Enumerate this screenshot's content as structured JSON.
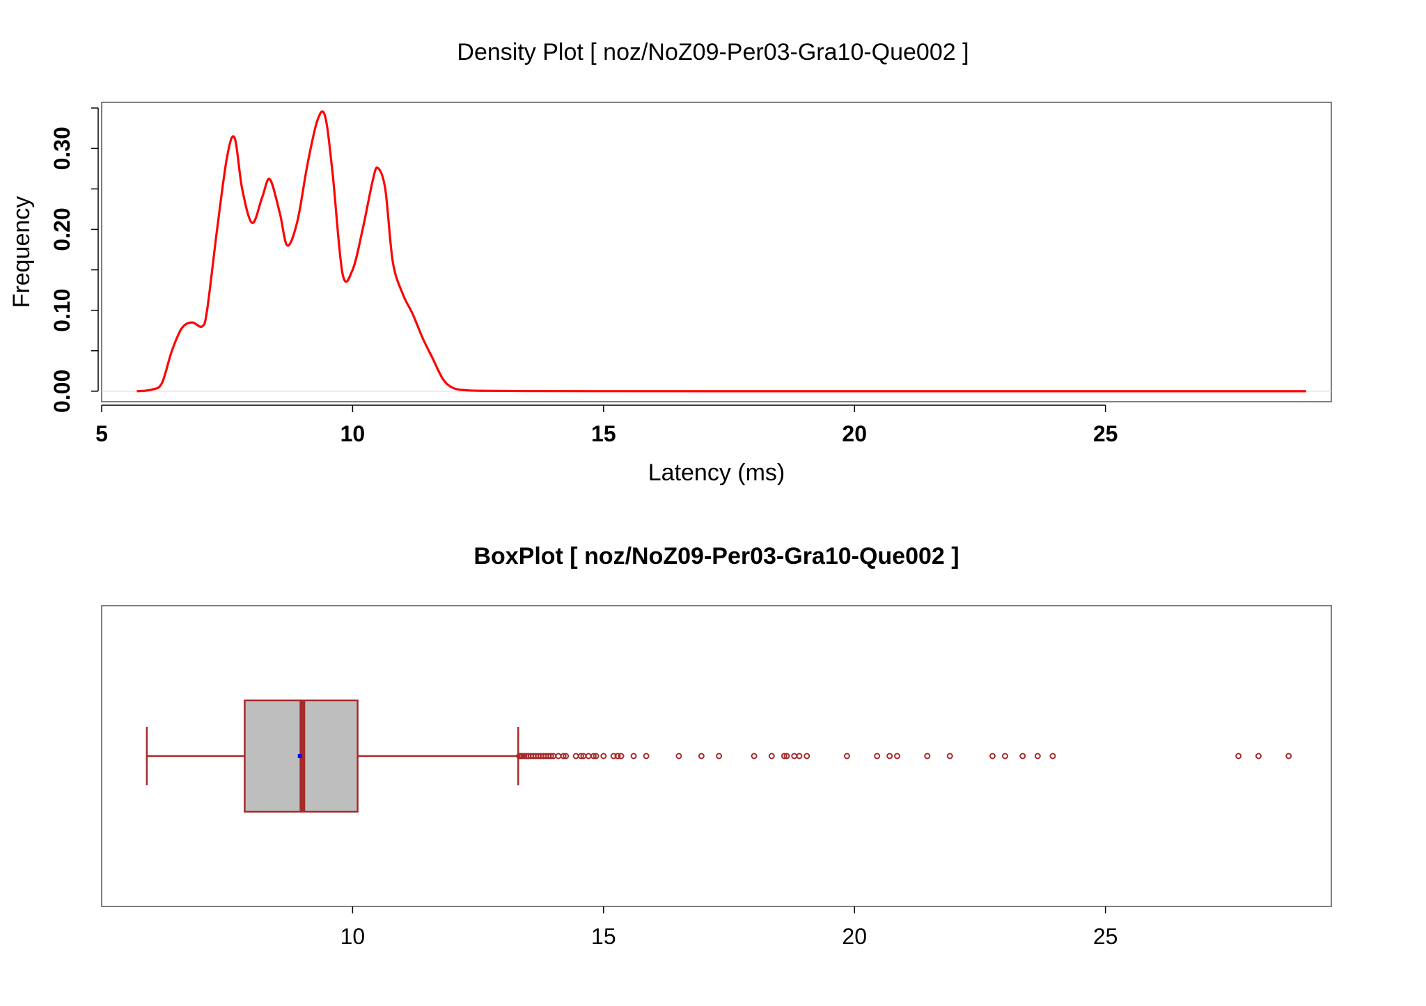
{
  "chart_data": [
    {
      "type": "line",
      "title": "Density Plot [ noz/NoZ09-Per03-Gra10-Que002 ]",
      "xlabel": "Latency (ms)",
      "ylabel": "Frequency",
      "xlim": [
        5,
        29.5
      ],
      "ylim": [
        -0.013,
        0.357
      ],
      "x_ticks": [
        5,
        10,
        15,
        20,
        25
      ],
      "x_tick_labels": [
        "5",
        "10",
        "15",
        "20",
        "25"
      ],
      "y_ticks": [
        0.0,
        0.1,
        0.2,
        0.3
      ],
      "y_tick_labels": [
        "0.00",
        "0.10",
        "0.20",
        "0.30"
      ],
      "y_minor_ticks": [
        0.05,
        0.15,
        0.25,
        0.35
      ],
      "grid": false,
      "line_color": "#ff0000",
      "series": [
        {
          "x": [
            5.7,
            6.0,
            6.2,
            6.4,
            6.6,
            6.8,
            7.0,
            7.1,
            7.3,
            7.5,
            7.65,
            7.8,
            8.0,
            8.2,
            8.35,
            8.55,
            8.7,
            8.9,
            9.1,
            9.3,
            9.45,
            9.6,
            9.8,
            10.0,
            10.2,
            10.4,
            10.5,
            10.65,
            10.8,
            11.0,
            11.2,
            11.4,
            11.6,
            11.8,
            12.0,
            12.3,
            12.7,
            13.5,
            15.0,
            20.0,
            25.0,
            29.0
          ],
          "y": [
            0.0,
            0.002,
            0.01,
            0.05,
            0.078,
            0.085,
            0.08,
            0.1,
            0.2,
            0.29,
            0.313,
            0.25,
            0.208,
            0.24,
            0.262,
            0.22,
            0.18,
            0.21,
            0.28,
            0.335,
            0.34,
            0.27,
            0.145,
            0.15,
            0.2,
            0.26,
            0.276,
            0.25,
            0.16,
            0.12,
            0.095,
            0.065,
            0.04,
            0.015,
            0.004,
            0.001,
            0.0005,
            0.0002,
            0.0001,
            0.0,
            0.0,
            0.0
          ]
        }
      ]
    },
    {
      "type": "box",
      "title": "BoxPlot [ noz/NoZ09-Per03-Gra10-Que002 ]",
      "xlim": [
        5.0,
        29.5
      ],
      "x_ticks": [
        10,
        15,
        20,
        25
      ],
      "x_tick_labels": [
        "10",
        "15",
        "20",
        "25"
      ],
      "whisker_low": 5.9,
      "q1": 7.85,
      "median": 9.0,
      "q3": 10.1,
      "whisker_high": 13.3,
      "mean": 8.95,
      "box_fill": "#bebebe",
      "border_color": "#a52a2a",
      "mean_color": "#0000ff",
      "outliers": [
        13.32,
        13.35,
        13.38,
        13.42,
        13.46,
        13.5,
        13.55,
        13.6,
        13.65,
        13.7,
        13.75,
        13.8,
        13.85,
        13.9,
        13.95,
        14.0,
        14.1,
        14.2,
        14.25,
        14.45,
        14.55,
        14.6,
        14.7,
        14.8,
        14.85,
        15.0,
        15.2,
        15.28,
        15.35,
        15.6,
        15.85,
        16.5,
        16.95,
        17.3,
        18.0,
        18.35,
        18.6,
        18.65,
        18.8,
        18.9,
        19.05,
        19.85,
        20.45,
        20.7,
        20.85,
        21.45,
        21.9,
        22.75,
        23.0,
        23.35,
        23.65,
        23.95,
        27.65,
        28.05,
        28.65
      ]
    }
  ]
}
